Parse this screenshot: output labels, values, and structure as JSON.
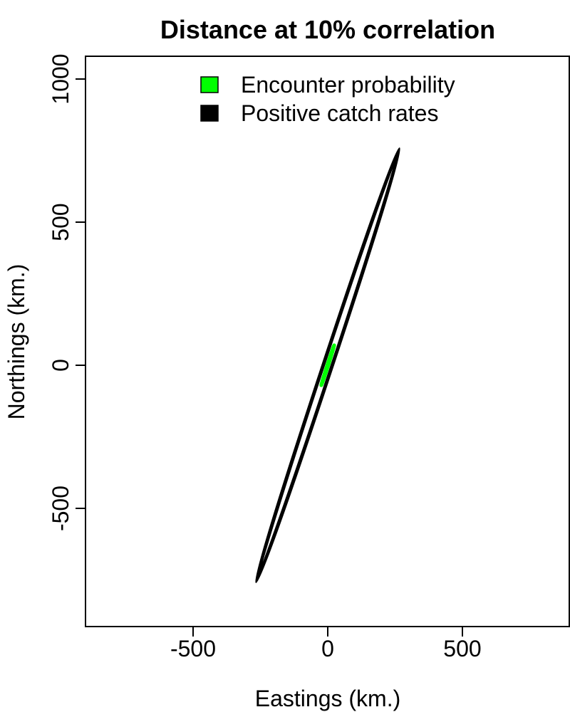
{
  "chart_data": {
    "type": "line",
    "title": "Distance at 10% correlation",
    "xlabel": "Eastings (km.)",
    "ylabel": "Northings (km.)",
    "xlim": [
      -900,
      900
    ],
    "ylim": [
      -900,
      1080
    ],
    "xticks": [
      -500,
      0,
      500
    ],
    "yticks": [
      -500,
      0,
      500,
      1000
    ],
    "grid": false,
    "legend_position": "top",
    "series": [
      {
        "name": "Encounter probability",
        "color": "#00ff00",
        "shape": "ellipse",
        "center": [
          0,
          0
        ],
        "extreme_point": [
          24,
          70
        ],
        "minor_semi_axis_km": 2
      },
      {
        "name": "Positive catch rates",
        "color": "#000000",
        "shape": "ellipse",
        "center": [
          0,
          0
        ],
        "extreme_point": [
          265,
          755
        ],
        "minor_semi_axis_km": 16
      }
    ]
  }
}
